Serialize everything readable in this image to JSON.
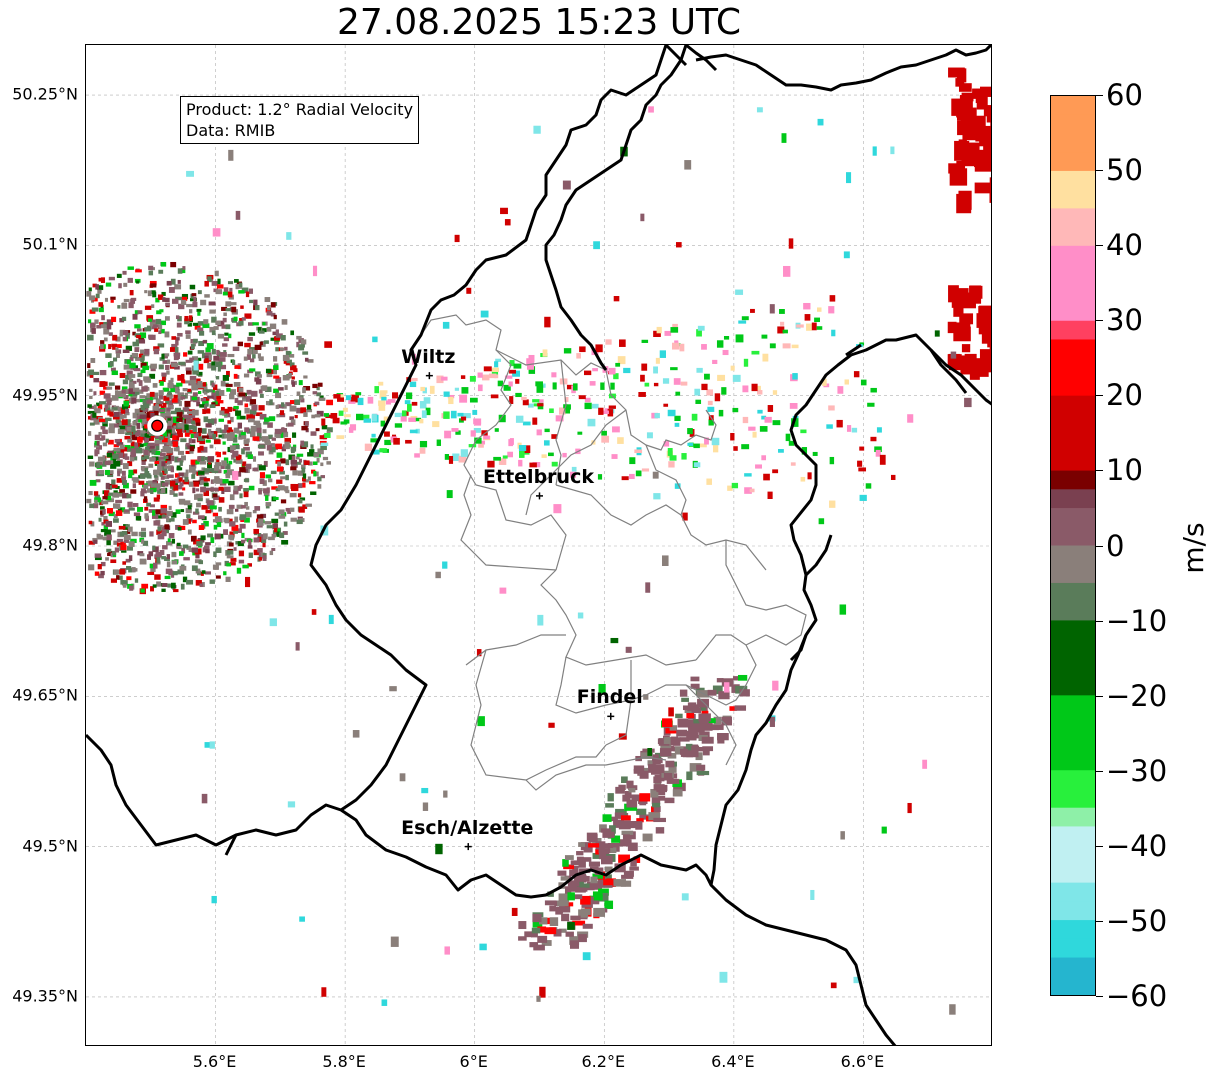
{
  "title": "27.08.2025 15:23 UTC",
  "info_box": {
    "product": "Product: 1.2° Radial Velocity",
    "data_source": "Data: RMIB"
  },
  "map_extent": {
    "lon": [
      5.4,
      6.8
    ],
    "lat": [
      49.3,
      50.3
    ]
  },
  "latitude_ticks": [
    "49.35°N",
    "49.5°N",
    "49.65°N",
    "49.8°N",
    "49.95°N",
    "50.1°N",
    "50.25°N"
  ],
  "longitude_ticks": [
    "5.6°E",
    "5.8°E",
    "6°E",
    "6.2°E",
    "6.4°E",
    "6.6°E"
  ],
  "cities": [
    {
      "name": "Wiltz",
      "lon": 5.93,
      "lat": 49.97
    },
    {
      "name": "Ettelbruck",
      "lon": 6.1,
      "lat": 49.85
    },
    {
      "name": "Findel",
      "lon": 6.21,
      "lat": 49.63
    },
    {
      "name": "Esch/Alzette",
      "lon": 5.99,
      "lat": 49.5
    }
  ],
  "radar_site": {
    "lon": 5.51,
    "lat": 49.92
  },
  "colorbar": {
    "unit": "m/s",
    "range": [
      -60,
      60
    ],
    "tick_labels": [
      "60",
      "50",
      "40",
      "30",
      "20",
      "10",
      "0",
      "−10",
      "−20",
      "−30",
      "−40",
      "−50",
      "−60"
    ],
    "tick_values": [
      60,
      50,
      40,
      30,
      20,
      10,
      0,
      -10,
      -20,
      -30,
      -40,
      -50,
      -60
    ],
    "stops": [
      {
        "v": -60,
        "color": "#1f77b4"
      },
      {
        "v": -55,
        "color": "#25b5cf"
      },
      {
        "v": -50,
        "color": "#2fd8dc"
      },
      {
        "v": -44,
        "color": "#7fe6e8"
      },
      {
        "v": -38,
        "color": "#c0f0f2"
      },
      {
        "v": -35,
        "color": "#8ef0a8"
      },
      {
        "v": -30,
        "color": "#28f03c"
      },
      {
        "v": -20,
        "color": "#00c818"
      },
      {
        "v": -10,
        "color": "#006400"
      },
      {
        "v": -5,
        "color": "#5a7c5a"
      },
      {
        "v": 0,
        "color": "#8a7f7a"
      },
      {
        "v": 5,
        "color": "#8a5a68"
      },
      {
        "v": 8,
        "color": "#7a4050"
      },
      {
        "v": 10,
        "color": "#7a0000"
      },
      {
        "v": 20,
        "color": "#d00000"
      },
      {
        "v": 28,
        "color": "#ff0000"
      },
      {
        "v": 30,
        "color": "#ff4060"
      },
      {
        "v": 40,
        "color": "#ff8ec8"
      },
      {
        "v": 45,
        "color": "#ffb8b8"
      },
      {
        "v": 50,
        "color": "#ffe0a0"
      },
      {
        "v": 60,
        "color": "#ff9a55"
      }
    ]
  }
}
